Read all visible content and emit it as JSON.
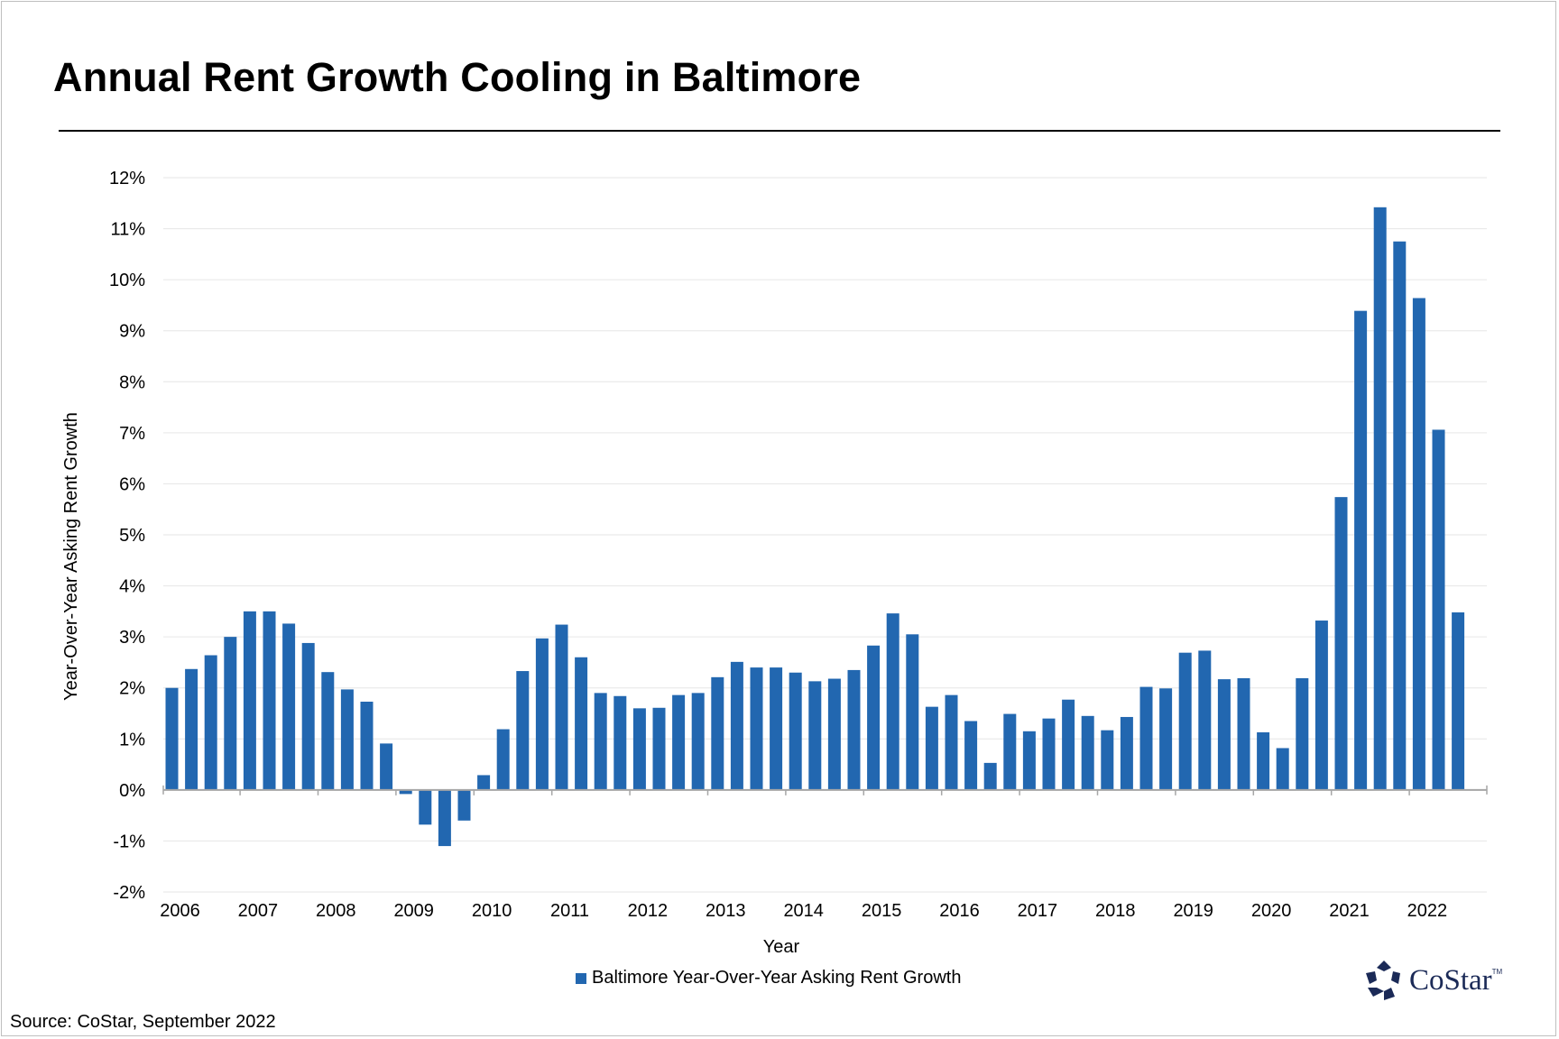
{
  "header": {
    "title": "Annual Rent Growth Cooling in Baltimore"
  },
  "footer": {
    "source": "Source: CoStar, September 2022",
    "logo_text": "CoStar",
    "logo_tm": "TM"
  },
  "colors": {
    "bar": "#2267b0",
    "grid": "#e6e6e6",
    "axis": "#a6a6a6",
    "logo": "#1b2a57"
  },
  "chart_data": {
    "type": "bar",
    "title": "Annual Rent Growth Cooling in Baltimore",
    "xlabel": "Year",
    "ylabel": "Year-Over-Year Asking Rent Growth",
    "ylim": [
      -2,
      12
    ],
    "yticks": [
      -2,
      -1,
      0,
      1,
      2,
      3,
      4,
      5,
      6,
      7,
      8,
      9,
      10,
      11,
      12
    ],
    "ytick_labels": [
      "-2%",
      "-1%",
      "0%",
      "1%",
      "2%",
      "3%",
      "4%",
      "5%",
      "6%",
      "7%",
      "8%",
      "9%",
      "10%",
      "11%",
      "12%"
    ],
    "x_tick_labels": [
      "2006",
      "2007",
      "2008",
      "2009",
      "2010",
      "2011",
      "2012",
      "2013",
      "2014",
      "2015",
      "2016",
      "2017",
      "2018",
      "2019",
      "2020",
      "2021",
      "2022"
    ],
    "grid": true,
    "legend_position": "bottom",
    "series": [
      {
        "name": "Baltimore Year-Over-Year Asking Rent Growth",
        "values": [
          2.0,
          2.37,
          2.64,
          3.0,
          3.5,
          3.5,
          3.26,
          2.88,
          2.31,
          1.97,
          1.73,
          0.91,
          -0.08,
          -0.68,
          -1.1,
          -0.6,
          0.29,
          1.19,
          2.33,
          2.97,
          3.24,
          2.6,
          1.9,
          1.84,
          1.6,
          1.61,
          1.86,
          1.9,
          2.21,
          2.51,
          2.4,
          2.4,
          2.3,
          2.13,
          2.18,
          2.35,
          2.83,
          3.46,
          3.05,
          1.63,
          1.86,
          1.35,
          0.53,
          1.49,
          1.15,
          1.4,
          1.77,
          1.45,
          1.17,
          1.43,
          2.02,
          1.99,
          2.69,
          2.73,
          2.17,
          2.19,
          1.13,
          0.82,
          2.19,
          3.32,
          5.74,
          9.39,
          11.42,
          10.75,
          9.64,
          7.06,
          3.48
        ]
      }
    ]
  }
}
